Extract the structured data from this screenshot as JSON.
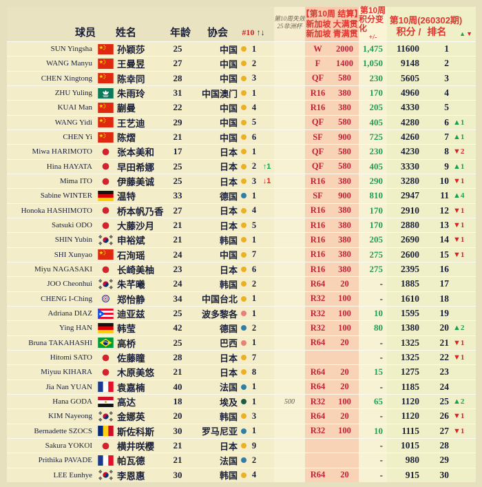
{
  "header": {
    "col_player": "球员",
    "col_name": "姓名",
    "col_age": "年龄",
    "col_assoc": "协会",
    "col_rank10": "#10",
    "col_rank10_arrows": "↑↓",
    "col_expire_line1": "第10周失效",
    "col_expire_line2": "25非洲杯",
    "col_settle_line1": "【第10周 结算】",
    "col_settle_line2": "新加坡 大满贯",
    "col_settle_line3": "新加坡 青满贯",
    "col_change_line1": "第10周",
    "col_change_line2": "积分变化",
    "col_change_line3": "+/-",
    "col_week_line1": "第10周(260302期)",
    "col_week_line2a": "积分 /",
    "col_week_line2b": "排名",
    "legend_up": "▲",
    "legend_down": "▼"
  },
  "dot_colors": {
    "asia": "#edb024",
    "europe": "#2e7fa8",
    "americas": "#e97f76",
    "africa": "#1f5c44"
  },
  "colors": {
    "body_bg": "#f3edca",
    "pink_band": "#f8d3b6",
    "cream_band": "#f8f2d4",
    "pale_band": "#eff0c8",
    "crimson_text": "#c22239",
    "green_text": "#22a052",
    "red_header": "#e0342f",
    "navy_text": "#1a1f38",
    "up_green": "#18a14b",
    "down_red": "#de1f26"
  },
  "chart_data": {
    "type": "table",
    "columns": [
      "球员",
      "旗帜",
      "姓名",
      "年龄",
      "协会",
      "洲别点",
      "#10协会排名",
      "协会排名变化",
      "第10周失效 25非洲杯",
      "第10周结算 轮次",
      "第10周结算 积分",
      "第10周积分变化 +/-",
      "第10周(260302期) 积分",
      "第10周(260302期) 排名",
      "排名变化"
    ],
    "rows": [
      {
        "name_en": "SUN Yingsha",
        "flag": "chn",
        "name_zh": "孙颖莎",
        "age": "25",
        "assoc": "中国",
        "continent": "asia",
        "assoc_rank": "1",
        "assoc_move": null,
        "expire": "",
        "round": "W",
        "round_pts": "2000",
        "change": "1,475",
        "score": "11600",
        "rank": "1",
        "rank_move": null
      },
      {
        "name_en": "WANG Manyu",
        "flag": "chn",
        "name_zh": "王曼昱",
        "age": "27",
        "assoc": "中国",
        "continent": "asia",
        "assoc_rank": "2",
        "assoc_move": null,
        "expire": "",
        "round": "F",
        "round_pts": "1400",
        "change": "1,050",
        "score": "9148",
        "rank": "2",
        "rank_move": null
      },
      {
        "name_en": "CHEN Xingtong",
        "flag": "chn",
        "name_zh": "陈幸同",
        "age": "28",
        "assoc": "中国",
        "continent": "asia",
        "assoc_rank": "3",
        "assoc_move": null,
        "expire": "",
        "round": "QF",
        "round_pts": "580",
        "change": "230",
        "score": "5605",
        "rank": "3",
        "rank_move": null
      },
      {
        "name_en": "ZHU Yuling",
        "flag": "mac",
        "name_zh": "朱雨玲",
        "age": "31",
        "assoc": "中国澳门",
        "continent": "asia",
        "assoc_rank": "1",
        "assoc_move": null,
        "expire": "",
        "round": "R16",
        "round_pts": "380",
        "change": "170",
        "score": "4960",
        "rank": "4",
        "rank_move": null
      },
      {
        "name_en": "KUAI Man",
        "flag": "chn",
        "name_zh": "蒯曼",
        "age": "22",
        "assoc": "中国",
        "continent": "asia",
        "assoc_rank": "4",
        "assoc_move": null,
        "expire": "",
        "round": "R16",
        "round_pts": "380",
        "change": "205",
        "score": "4330",
        "rank": "5",
        "rank_move": null
      },
      {
        "name_en": "WANG Yidi",
        "flag": "chn",
        "name_zh": "王艺迪",
        "age": "29",
        "assoc": "中国",
        "continent": "asia",
        "assoc_rank": "5",
        "assoc_move": null,
        "expire": "",
        "round": "QF",
        "round_pts": "580",
        "change": "405",
        "score": "4280",
        "rank": "6",
        "rank_move": {
          "dir": "up",
          "n": "1"
        }
      },
      {
        "name_en": "CHEN Yi",
        "flag": "chn",
        "name_zh": "陈熠",
        "age": "21",
        "assoc": "中国",
        "continent": "asia",
        "assoc_rank": "6",
        "assoc_move": null,
        "expire": "",
        "round": "SF",
        "round_pts": "900",
        "change": "725",
        "score": "4260",
        "rank": "7",
        "rank_move": {
          "dir": "up",
          "n": "1"
        }
      },
      {
        "name_en": "Miwa HARIMOTO",
        "flag": "jpn",
        "name_zh": "张本美和",
        "age": "17",
        "assoc": "日本",
        "continent": "asia",
        "assoc_rank": "1",
        "assoc_move": null,
        "expire": "",
        "round": "QF",
        "round_pts": "580",
        "change": "230",
        "score": "4230",
        "rank": "8",
        "rank_move": {
          "dir": "down",
          "n": "2"
        }
      },
      {
        "name_en": "Hina HAYATA",
        "flag": "jpn",
        "name_zh": "早田希娜",
        "age": "25",
        "assoc": "日本",
        "continent": "asia",
        "assoc_rank": "2",
        "assoc_move": {
          "dir": "up",
          "n": "1"
        },
        "expire": "",
        "round": "QF",
        "round_pts": "580",
        "change": "405",
        "score": "3330",
        "rank": "9",
        "rank_move": {
          "dir": "up",
          "n": "1"
        }
      },
      {
        "name_en": "Mima ITO",
        "flag": "jpn",
        "name_zh": "伊藤美诚",
        "age": "25",
        "assoc": "日本",
        "continent": "asia",
        "assoc_rank": "3",
        "assoc_move": {
          "dir": "down",
          "n": "1"
        },
        "expire": "",
        "round": "R16",
        "round_pts": "380",
        "change": "290",
        "score": "3280",
        "rank": "10",
        "rank_move": {
          "dir": "down",
          "n": "1"
        }
      },
      {
        "name_en": "Sabine WINTER",
        "flag": "ger",
        "name_zh": "温特",
        "age": "33",
        "assoc": "德国",
        "continent": "europe",
        "assoc_rank": "1",
        "assoc_move": null,
        "expire": "",
        "round": "SF",
        "round_pts": "900",
        "change": "810",
        "score": "2947",
        "rank": "11",
        "rank_move": {
          "dir": "up",
          "n": "4"
        }
      },
      {
        "name_en": "Honoka HASHIMOTO",
        "flag": "jpn",
        "name_zh": "桥本帆乃香",
        "age": "27",
        "assoc": "日本",
        "continent": "asia",
        "assoc_rank": "4",
        "assoc_move": null,
        "expire": "",
        "round": "R16",
        "round_pts": "380",
        "change": "170",
        "score": "2910",
        "rank": "12",
        "rank_move": {
          "dir": "down",
          "n": "1"
        }
      },
      {
        "name_en": "Satsuki ODO",
        "flag": "jpn",
        "name_zh": "大藤沙月",
        "age": "21",
        "assoc": "日本",
        "continent": "asia",
        "assoc_rank": "5",
        "assoc_move": null,
        "expire": "",
        "round": "R16",
        "round_pts": "380",
        "change": "170",
        "score": "2880",
        "rank": "13",
        "rank_move": {
          "dir": "down",
          "n": "1"
        }
      },
      {
        "name_en": "SHIN Yubin",
        "flag": "kor",
        "name_zh": "申裕斌",
        "age": "21",
        "assoc": "韩国",
        "continent": "asia",
        "assoc_rank": "1",
        "assoc_move": null,
        "expire": "",
        "round": "R16",
        "round_pts": "380",
        "change": "205",
        "score": "2690",
        "rank": "14",
        "rank_move": {
          "dir": "down",
          "n": "1"
        }
      },
      {
        "name_en": "SHI Xunyao",
        "flag": "chn",
        "name_zh": "石洵瑶",
        "age": "24",
        "assoc": "中国",
        "continent": "asia",
        "assoc_rank": "7",
        "assoc_move": null,
        "expire": "",
        "round": "R16",
        "round_pts": "380",
        "change": "275",
        "score": "2600",
        "rank": "15",
        "rank_move": {
          "dir": "down",
          "n": "1"
        }
      },
      {
        "name_en": "Miyu NAGASAKI",
        "flag": "jpn",
        "name_zh": "长崎美柚",
        "age": "23",
        "assoc": "日本",
        "continent": "asia",
        "assoc_rank": "6",
        "assoc_move": null,
        "expire": "",
        "round": "R16",
        "round_pts": "380",
        "change": "275",
        "score": "2395",
        "rank": "16",
        "rank_move": null
      },
      {
        "name_en": "JOO Cheonhui",
        "flag": "kor",
        "name_zh": "朱芊曦",
        "age": "24",
        "assoc": "韩国",
        "continent": "asia",
        "assoc_rank": "2",
        "assoc_move": null,
        "expire": "",
        "round": "R64",
        "round_pts": "20",
        "change": "-",
        "score": "1885",
        "rank": "17",
        "rank_move": null
      },
      {
        "name_en": "CHENG I-Ching",
        "flag": "tpe",
        "name_zh": "郑怡静",
        "age": "34",
        "assoc": "中国台北",
        "continent": "asia",
        "assoc_rank": "1",
        "assoc_move": null,
        "expire": "",
        "round": "R32",
        "round_pts": "100",
        "change": "-",
        "score": "1610",
        "rank": "18",
        "rank_move": null
      },
      {
        "name_en": "Adriana DIAZ",
        "flag": "pur",
        "name_zh": "迪亚兹",
        "age": "25",
        "assoc": "波多黎各",
        "continent": "americas",
        "assoc_rank": "1",
        "assoc_move": null,
        "expire": "",
        "round": "R32",
        "round_pts": "100",
        "change": "10",
        "score": "1595",
        "rank": "19",
        "rank_move": null
      },
      {
        "name_en": "Ying HAN",
        "flag": "ger",
        "name_zh": "韩莹",
        "age": "42",
        "assoc": "德国",
        "continent": "europe",
        "assoc_rank": "2",
        "assoc_move": null,
        "expire": "",
        "round": "R32",
        "round_pts": "100",
        "change": "80",
        "score": "1380",
        "rank": "20",
        "rank_move": {
          "dir": "up",
          "n": "2"
        }
      },
      {
        "name_en": "Bruna TAKAHASHI",
        "flag": "bra",
        "name_zh": "高桥",
        "age": "25",
        "assoc": "巴西",
        "continent": "americas",
        "assoc_rank": "1",
        "assoc_move": null,
        "expire": "",
        "round": "R64",
        "round_pts": "20",
        "change": "-",
        "score": "1325",
        "rank": "21",
        "rank_move": {
          "dir": "down",
          "n": "1"
        }
      },
      {
        "name_en": "Hitomi SATO",
        "flag": "jpn",
        "name_zh": "佐藤瞳",
        "age": "28",
        "assoc": "日本",
        "continent": "asia",
        "assoc_rank": "7",
        "assoc_move": null,
        "expire": "",
        "round": "",
        "round_pts": "",
        "change": "-",
        "score": "1325",
        "rank": "22",
        "rank_move": {
          "dir": "down",
          "n": "1"
        }
      },
      {
        "name_en": "Miyuu KIHARA",
        "flag": "jpn",
        "name_zh": "木原美悠",
        "age": "21",
        "assoc": "日本",
        "continent": "asia",
        "assoc_rank": "8",
        "assoc_move": null,
        "expire": "",
        "round": "R64",
        "round_pts": "20",
        "change": "15",
        "score": "1275",
        "rank": "23",
        "rank_move": null
      },
      {
        "name_en": "Jia Nan YUAN",
        "flag": "fra",
        "name_zh": "袁嘉楠",
        "age": "40",
        "assoc": "法国",
        "continent": "europe",
        "assoc_rank": "1",
        "assoc_move": null,
        "expire": "",
        "round": "R64",
        "round_pts": "20",
        "change": "-",
        "score": "1185",
        "rank": "24",
        "rank_move": null
      },
      {
        "name_en": "Hana GODA",
        "flag": "egy",
        "name_zh": "高达",
        "age": "18",
        "assoc": "埃及",
        "continent": "africa",
        "assoc_rank": "1",
        "assoc_move": null,
        "expire": "500",
        "round": "R32",
        "round_pts": "100",
        "change": "65",
        "score": "1120",
        "rank": "25",
        "rank_move": {
          "dir": "up",
          "n": "2"
        }
      },
      {
        "name_en": "KIM Nayeong",
        "flag": "kor",
        "name_zh": "金娜英",
        "age": "20",
        "assoc": "韩国",
        "continent": "asia",
        "assoc_rank": "3",
        "assoc_move": null,
        "expire": "",
        "round": "R64",
        "round_pts": "20",
        "change": "-",
        "score": "1120",
        "rank": "26",
        "rank_move": {
          "dir": "down",
          "n": "1"
        }
      },
      {
        "name_en": "Bernadette SZOCS",
        "flag": "rou",
        "name_zh": "斯佐科斯",
        "age": "30",
        "assoc": "罗马尼亚",
        "continent": "europe",
        "assoc_rank": "1",
        "assoc_move": null,
        "expire": "",
        "round": "R32",
        "round_pts": "100",
        "change": "10",
        "score": "1115",
        "rank": "27",
        "rank_move": {
          "dir": "down",
          "n": "1"
        }
      },
      {
        "name_en": "Sakura YOKOI",
        "flag": "jpn",
        "name_zh": "横井咲樱",
        "age": "21",
        "assoc": "日本",
        "continent": "asia",
        "assoc_rank": "9",
        "assoc_move": null,
        "expire": "",
        "round": "",
        "round_pts": "",
        "change": "-",
        "score": "1015",
        "rank": "28",
        "rank_move": null
      },
      {
        "name_en": "Prithika PAVADE",
        "flag": "fra",
        "name_zh": "帕瓦德",
        "age": "21",
        "assoc": "法国",
        "continent": "europe",
        "assoc_rank": "2",
        "assoc_move": null,
        "expire": "",
        "round": "",
        "round_pts": "",
        "change": "-",
        "score": "980",
        "rank": "29",
        "rank_move": null
      },
      {
        "name_en": "LEE Eunhye",
        "flag": "kor",
        "name_zh": "李恩惠",
        "age": "30",
        "assoc": "韩国",
        "continent": "asia",
        "assoc_rank": "4",
        "assoc_move": null,
        "expire": "",
        "round": "R64",
        "round_pts": "20",
        "change": "-",
        "score": "915",
        "rank": "30",
        "rank_move": null
      }
    ]
  }
}
